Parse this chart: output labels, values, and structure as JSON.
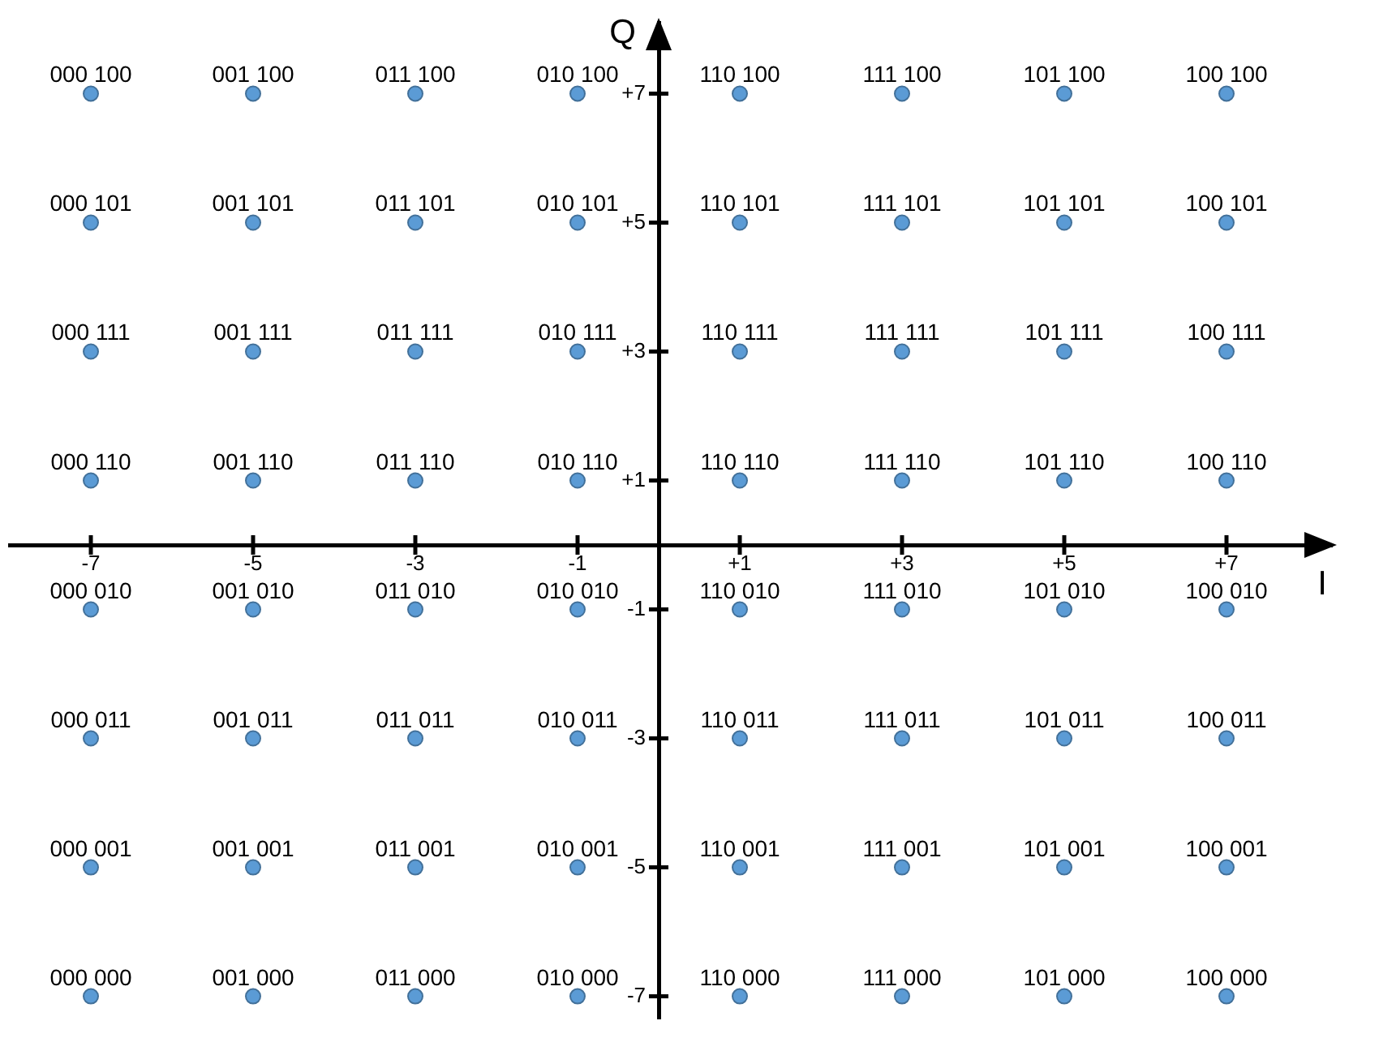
{
  "chart_data": {
    "type": "scatter",
    "xlabel": "I",
    "ylabel": "Q",
    "color": "#5b9bd5",
    "marker": "circle",
    "x": [
      -7,
      -5,
      -3,
      -1,
      1,
      3,
      5,
      7,
      -7,
      -5,
      -3,
      -1,
      1,
      3,
      5,
      7,
      -7,
      -5,
      -3,
      -1,
      1,
      3,
      5,
      7,
      -7,
      -5,
      -3,
      -1,
      1,
      3,
      5,
      7,
      -7,
      -5,
      -3,
      -1,
      1,
      3,
      5,
      7,
      -7,
      -5,
      -3,
      -1,
      1,
      3,
      5,
      7,
      -7,
      -5,
      -3,
      -1,
      1,
      3,
      5,
      7,
      -7,
      -5,
      -3,
      -1,
      1,
      3,
      5,
      7
    ],
    "values": [
      7,
      7,
      7,
      7,
      7,
      7,
      7,
      7,
      5,
      5,
      5,
      5,
      5,
      5,
      5,
      5,
      3,
      3,
      3,
      3,
      3,
      3,
      3,
      3,
      1,
      1,
      1,
      1,
      1,
      1,
      1,
      1,
      -1,
      -1,
      -1,
      -1,
      -1,
      -1,
      -1,
      -1,
      -3,
      -3,
      -3,
      -3,
      -3,
      -3,
      -3,
      -3,
      -5,
      -5,
      -5,
      -5,
      -5,
      -5,
      -5,
      -5,
      -7,
      -7,
      -7,
      -7,
      -7,
      -7,
      -7,
      -7
    ],
    "annotations": [
      {
        "text": "000 100",
        "x": -7,
        "y": 7
      },
      {
        "text": "001 100",
        "x": -5,
        "y": 7
      },
      {
        "text": "011 100",
        "x": -3,
        "y": 7
      },
      {
        "text": "010 100",
        "x": -1,
        "y": 7
      },
      {
        "text": "110 100",
        "x": 1,
        "y": 7
      },
      {
        "text": "111 100",
        "x": 3,
        "y": 7
      },
      {
        "text": "101 100",
        "x": 5,
        "y": 7
      },
      {
        "text": "100 100",
        "x": 7,
        "y": 7
      },
      {
        "text": "000 101",
        "x": -7,
        "y": 5
      },
      {
        "text": "001 101",
        "x": -5,
        "y": 5
      },
      {
        "text": "011 101",
        "x": -3,
        "y": 5
      },
      {
        "text": "010 101",
        "x": -1,
        "y": 5
      },
      {
        "text": "110 101",
        "x": 1,
        "y": 5
      },
      {
        "text": "111 101",
        "x": 3,
        "y": 5
      },
      {
        "text": "101 101",
        "x": 5,
        "y": 5
      },
      {
        "text": "100 101",
        "x": 7,
        "y": 5
      },
      {
        "text": "000 111",
        "x": -7,
        "y": 3
      },
      {
        "text": "001 111",
        "x": -5,
        "y": 3
      },
      {
        "text": "011 111",
        "x": -3,
        "y": 3
      },
      {
        "text": "010 111",
        "x": -1,
        "y": 3
      },
      {
        "text": "110 111",
        "x": 1,
        "y": 3
      },
      {
        "text": "111 111",
        "x": 3,
        "y": 3
      },
      {
        "text": "101 111",
        "x": 5,
        "y": 3
      },
      {
        "text": "100 111",
        "x": 7,
        "y": 3
      },
      {
        "text": "000 110",
        "x": -7,
        "y": 1
      },
      {
        "text": "001 110",
        "x": -5,
        "y": 1
      },
      {
        "text": "011 110",
        "x": -3,
        "y": 1
      },
      {
        "text": "010 110",
        "x": -1,
        "y": 1
      },
      {
        "text": "110 110",
        "x": 1,
        "y": 1
      },
      {
        "text": "111 110",
        "x": 3,
        "y": 1
      },
      {
        "text": "101 110",
        "x": 5,
        "y": 1
      },
      {
        "text": "100 110",
        "x": 7,
        "y": 1
      },
      {
        "text": "000 010",
        "x": -7,
        "y": -1
      },
      {
        "text": "001 010",
        "x": -5,
        "y": -1
      },
      {
        "text": "011 010",
        "x": -3,
        "y": -1
      },
      {
        "text": "010 010",
        "x": -1,
        "y": -1
      },
      {
        "text": "110 010",
        "x": 1,
        "y": -1
      },
      {
        "text": "111 010",
        "x": 3,
        "y": -1
      },
      {
        "text": "101 010",
        "x": 5,
        "y": -1
      },
      {
        "text": "100 010",
        "x": 7,
        "y": -1
      },
      {
        "text": "000 011",
        "x": -7,
        "y": -3
      },
      {
        "text": "001 011",
        "x": -5,
        "y": -3
      },
      {
        "text": "011 011",
        "x": -3,
        "y": -3
      },
      {
        "text": "010 011",
        "x": -1,
        "y": -3
      },
      {
        "text": "110 011",
        "x": 1,
        "y": -3
      },
      {
        "text": "111 011",
        "x": 3,
        "y": -3
      },
      {
        "text": "101 011",
        "x": 5,
        "y": -3
      },
      {
        "text": "100 011",
        "x": 7,
        "y": -3
      },
      {
        "text": "000 001",
        "x": -7,
        "y": -5
      },
      {
        "text": "001 001",
        "x": -5,
        "y": -5
      },
      {
        "text": "011 001",
        "x": -3,
        "y": -5
      },
      {
        "text": "010 001",
        "x": -1,
        "y": -5
      },
      {
        "text": "110 001",
        "x": 1,
        "y": -5
      },
      {
        "text": "111 001",
        "x": 3,
        "y": -5
      },
      {
        "text": "101 001",
        "x": 5,
        "y": -5
      },
      {
        "text": "100 001",
        "x": 7,
        "y": -5
      },
      {
        "text": "000 000",
        "x": -7,
        "y": -7
      },
      {
        "text": "001 000",
        "x": -5,
        "y": -7
      },
      {
        "text": "011 000",
        "x": -3,
        "y": -7
      },
      {
        "text": "010 000",
        "x": -1,
        "y": -7
      },
      {
        "text": "110 000",
        "x": 1,
        "y": -7
      },
      {
        "text": "111 000",
        "x": 3,
        "y": -7
      },
      {
        "text": "101 000",
        "x": 5,
        "y": -7
      },
      {
        "text": "100 000",
        "x": 7,
        "y": -7
      }
    ],
    "xlim": [
      -8.0,
      8.3
    ],
    "ylim": [
      -7.35,
      8.1
    ],
    "xticks": [
      -7,
      -5,
      -3,
      -1,
      {
        "value": 1,
        "label": "+1"
      },
      {
        "value": 3,
        "label": "+3"
      },
      {
        "value": 5,
        "label": "+5"
      },
      {
        "value": 7,
        "label": "+7"
      }
    ],
    "yticks": [
      -7,
      -5,
      -3,
      -1,
      {
        "value": 1,
        "label": "+1"
      },
      {
        "value": 3,
        "label": "+3"
      },
      {
        "value": 5,
        "label": "+5"
      },
      {
        "value": 7,
        "label": "+7"
      }
    ]
  }
}
